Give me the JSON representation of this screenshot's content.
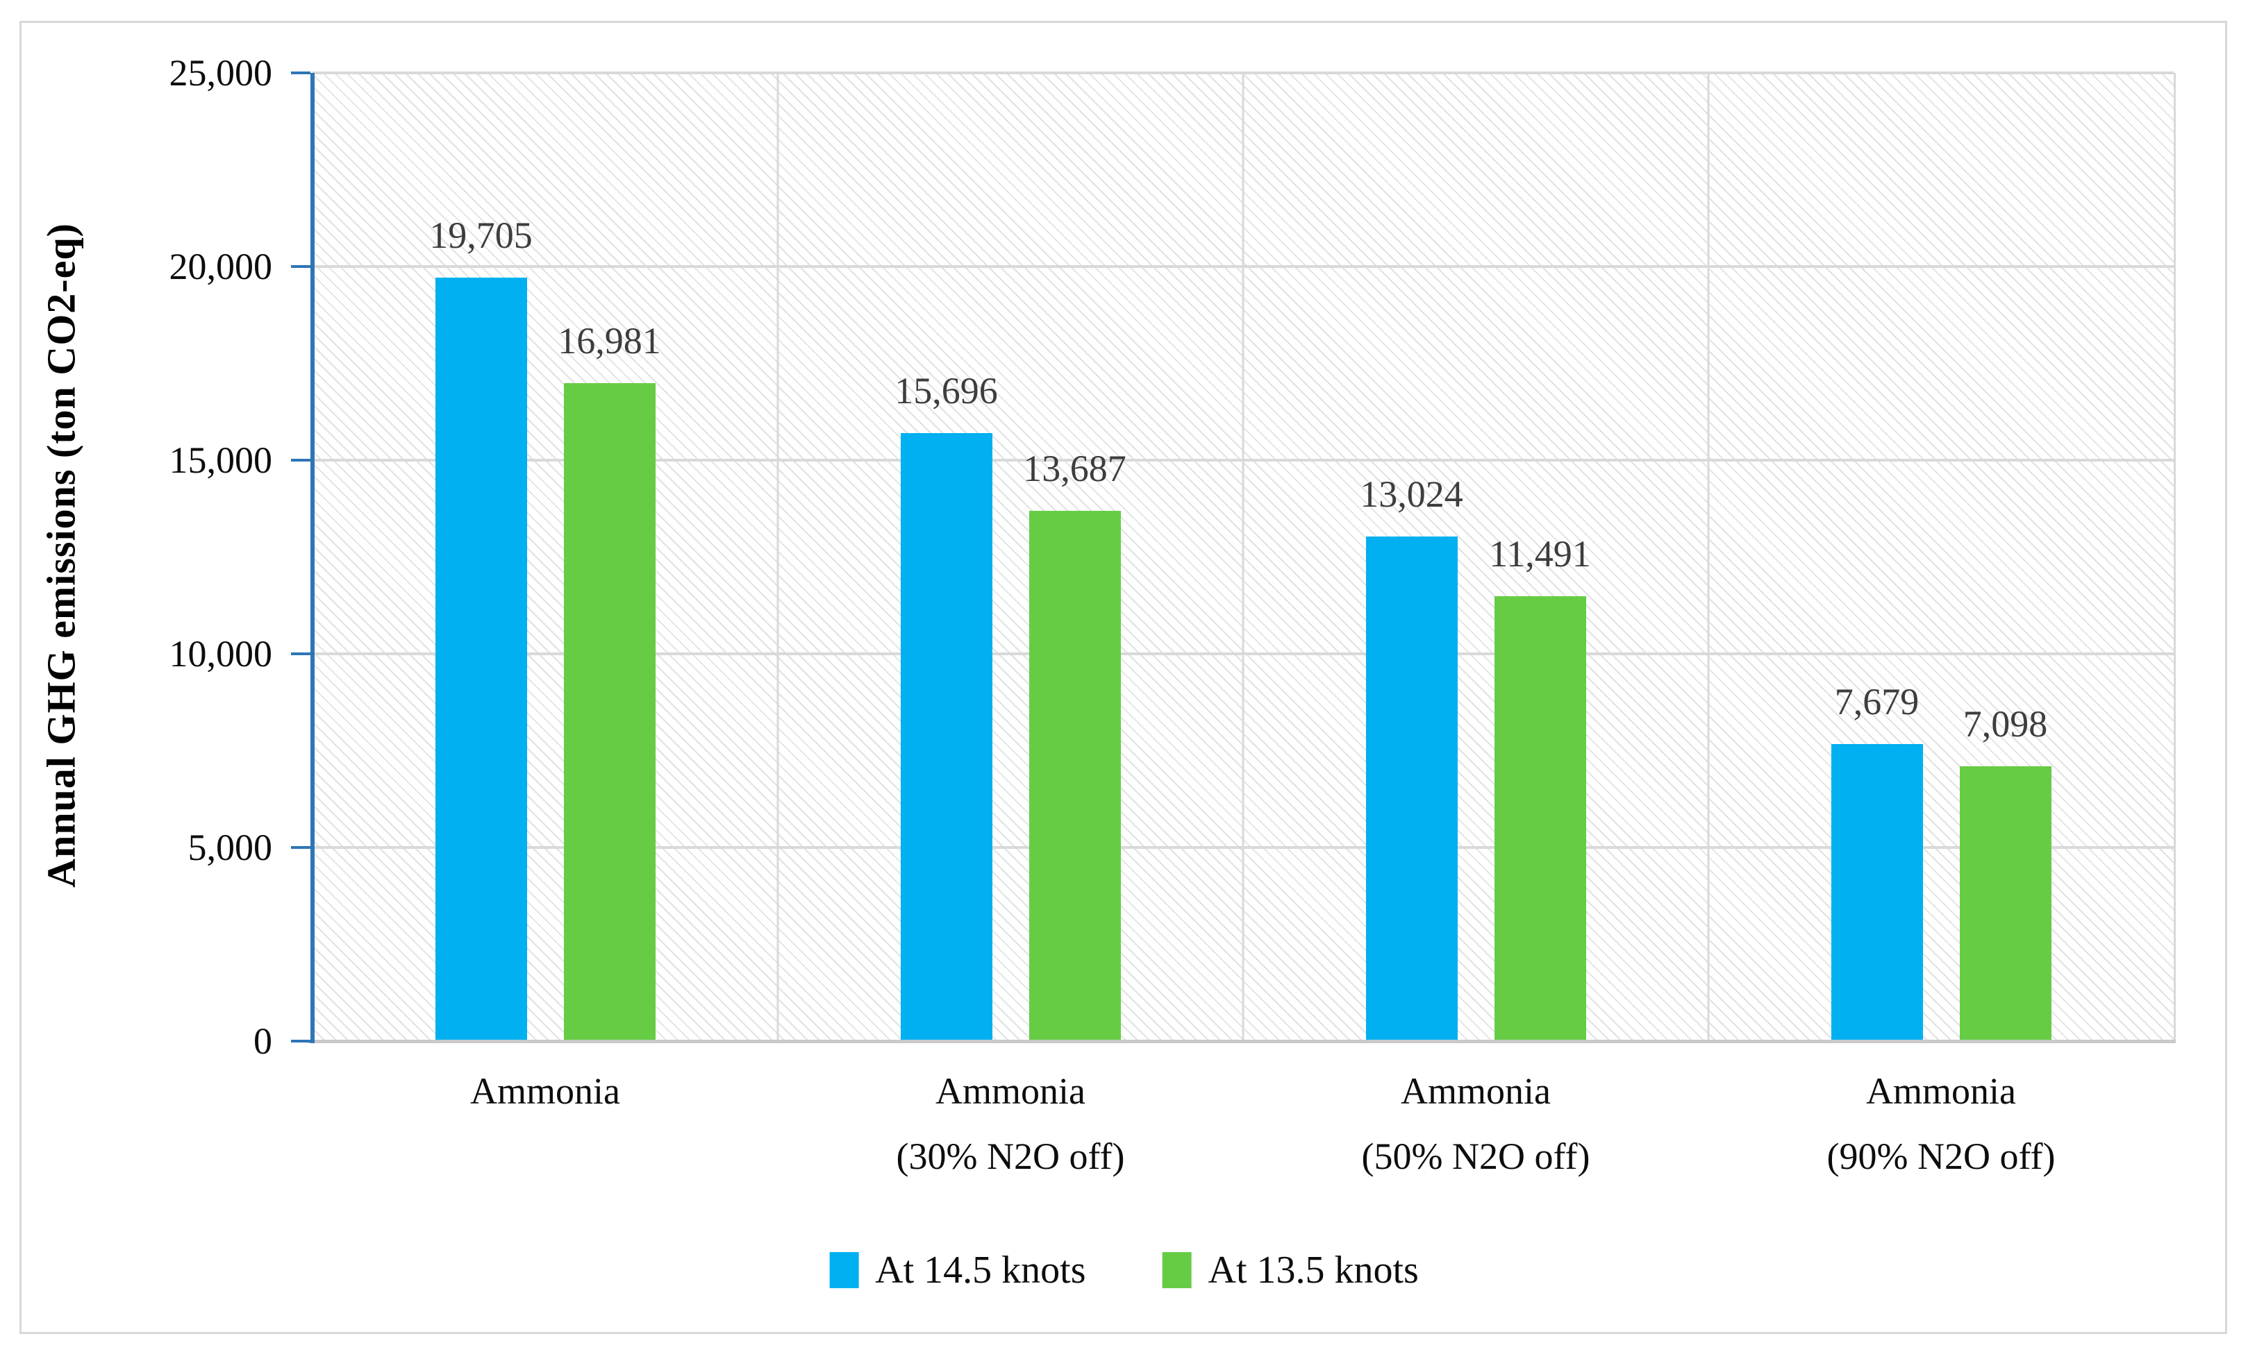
{
  "chart_data": {
    "type": "bar",
    "title": "",
    "xlabel": "",
    "ylabel": "Annual GHG emissions (ton CO2-eq)",
    "ylim": [
      0,
      25000
    ],
    "ytick_step": 5000,
    "yticks": [
      {
        "value": 0,
        "label": "0"
      },
      {
        "value": 5000,
        "label": "5,000"
      },
      {
        "value": 10000,
        "label": "10,000"
      },
      {
        "value": 15000,
        "label": "15,000"
      },
      {
        "value": 20000,
        "label": "20,000"
      },
      {
        "value": 25000,
        "label": "25,000"
      }
    ],
    "categories": [
      {
        "line1": "Ammonia",
        "line2": ""
      },
      {
        "line1": "Ammonia",
        "line2": "(30% N2O off)"
      },
      {
        "line1": "Ammonia",
        "line2": "(50% N2O off)"
      },
      {
        "line1": "Ammonia",
        "line2": "(90% N2O off)"
      }
    ],
    "series": [
      {
        "name": "At 14.5 knots",
        "color": "#00b0f0",
        "values": [
          19705,
          15696,
          13024,
          7679
        ],
        "labels": [
          "19,705",
          "15,696",
          "13,024",
          "7,679"
        ]
      },
      {
        "name": "At 13.5 knots",
        "color": "#66cc44",
        "values": [
          16981,
          13687,
          11491,
          7098
        ],
        "labels": [
          "16,981",
          "13,687",
          "11,491",
          "7,098"
        ]
      }
    ],
    "grid": true,
    "legend_position": "bottom-center",
    "plot_background": "diagonal-hatch",
    "colors": {
      "axis_line": "#2e75b6",
      "gridline": "#d9d9d9",
      "value_label_text": "#3d3d3d",
      "figure_border": "#d8d8d8"
    }
  }
}
